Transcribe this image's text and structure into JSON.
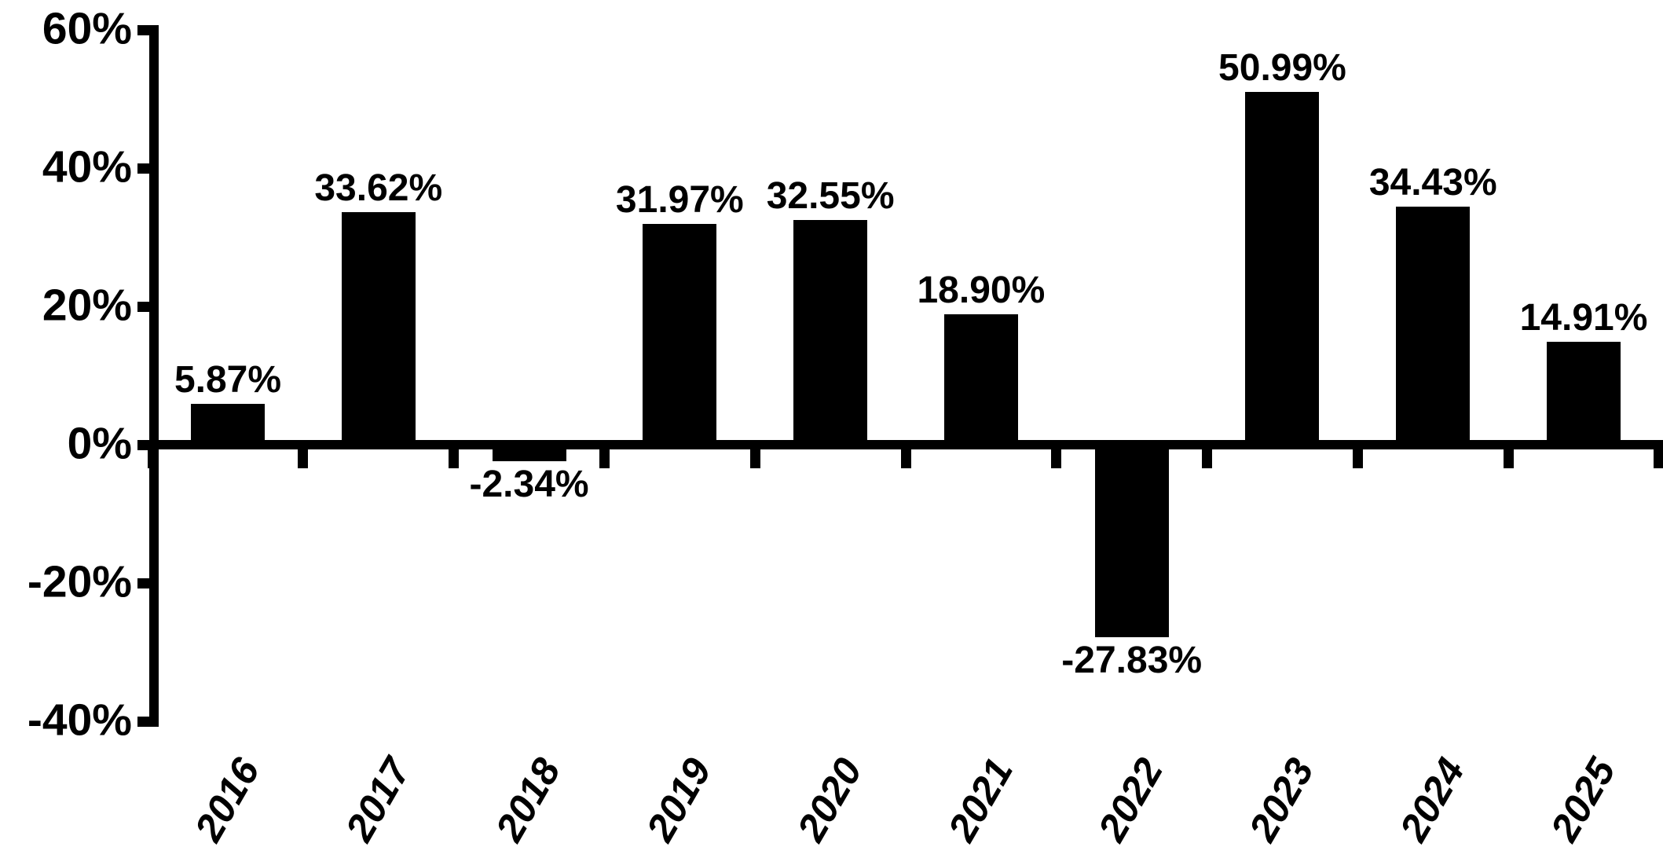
{
  "chart_data": {
    "type": "bar",
    "title": "",
    "xlabel": "",
    "ylabel": "",
    "categories": [
      "2016",
      "2017",
      "2018",
      "2019",
      "2020",
      "2021",
      "2022",
      "2023",
      "2024",
      "2025"
    ],
    "values": [
      5.87,
      33.62,
      -2.34,
      31.97,
      32.55,
      18.9,
      -27.83,
      50.99,
      34.43,
      14.91
    ],
    "value_labels": [
      "5.87%",
      "33.62%",
      "-2.34%",
      "31.97%",
      "32.55%",
      "18.90%",
      "-27.83%",
      "50.99%",
      "34.43%",
      "14.91%"
    ],
    "yticks": [
      60,
      40,
      20,
      0,
      -20,
      -40
    ],
    "ytick_labels": [
      "60%",
      "40%",
      "20%",
      "0%",
      "-20%",
      "-40%"
    ],
    "ylim": [
      -40,
      60
    ],
    "grid": false,
    "legend": null,
    "x_tick_label_rotation_deg": 60,
    "value_label_position": "outside-end",
    "bar_color": "#000000",
    "axis_color": "#000000",
    "text_color": "#000000",
    "background_color": "#ffffff"
  }
}
